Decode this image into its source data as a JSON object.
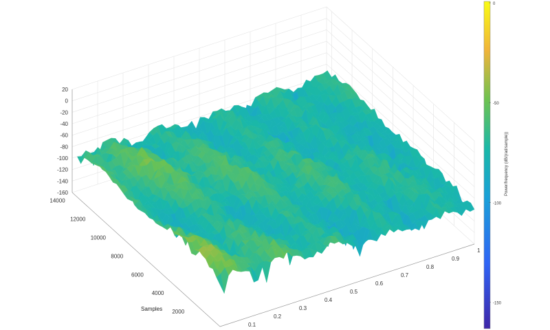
{
  "chart_data": {
    "type": "surface",
    "xlabel": "",
    "ylabel": "Samples",
    "zlabel": "",
    "x_ticks": [
      "0.1",
      "0.2",
      "0.3",
      "0.4",
      "0.5",
      "0.6",
      "0.7",
      "0.8",
      "0.9",
      "1"
    ],
    "y_ticks": [
      "2000",
      "4000",
      "6000",
      "8000",
      "10000",
      "12000",
      "14000"
    ],
    "z_ticks": [
      "20",
      "0",
      "-20",
      "-40",
      "-60",
      "-80",
      "-100",
      "-120",
      "-140",
      "-160"
    ],
    "xlim": [
      0,
      1
    ],
    "ylim": [
      0,
      14000
    ],
    "zlim": [
      -160,
      20
    ],
    "grid": true,
    "colormap": "parula",
    "colorbar": {
      "label": "Power/frequency (dB/(rad/sample))",
      "ticks": [
        "0",
        "-50",
        "-100",
        "-150"
      ],
      "range": [
        -160,
        0
      ],
      "placement": "right"
    }
  }
}
